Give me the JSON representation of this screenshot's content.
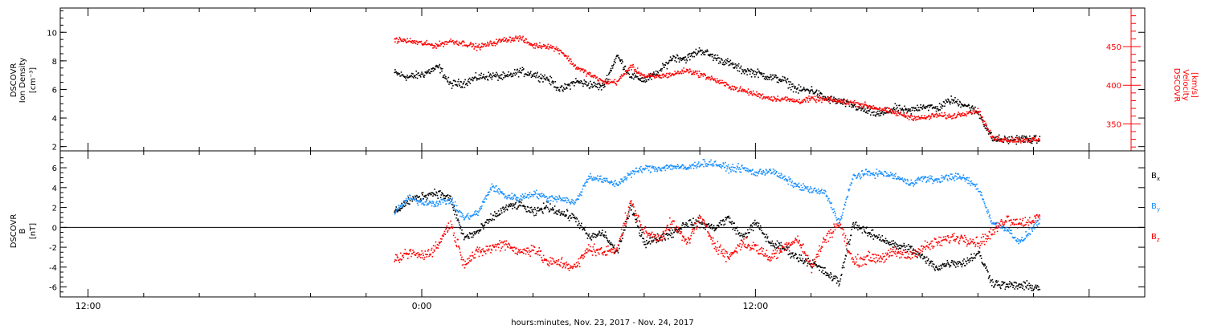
{
  "chart_data": [
    {
      "type": "scatter",
      "panel": "top",
      "ylabel_left": [
        "DSCOVR",
        "Ion Density",
        "[cm⁻³]"
      ],
      "ylabel_right": [
        "DSCOVR",
        "Velocity",
        "[km/s]"
      ],
      "y_left_range": [
        1.7,
        11.7
      ],
      "y_left_ticks": [
        2,
        4,
        6,
        8,
        10
      ],
      "y_right_range": [
        315,
        500
      ],
      "y_right_ticks": [
        350,
        400,
        450
      ],
      "series": [
        {
          "name": "Ion Density",
          "color": "#000000",
          "axis": "left",
          "points": [
            [
              -1.0,
              7.2
            ],
            [
              -0.5,
              6.9
            ],
            [
              0.0,
              7.1
            ],
            [
              0.6,
              7.6
            ],
            [
              1.0,
              6.4
            ],
            [
              1.5,
              6.5
            ],
            [
              2.0,
              6.9
            ],
            [
              2.5,
              7.0
            ],
            [
              3.0,
              6.9
            ],
            [
              3.5,
              7.3
            ],
            [
              4.0,
              7.1
            ],
            [
              4.5,
              6.8
            ],
            [
              5.0,
              6.0
            ],
            [
              5.5,
              6.6
            ],
            [
              6.0,
              6.4
            ],
            [
              6.5,
              6.2
            ],
            [
              7.0,
              8.4
            ],
            [
              7.5,
              7.0
            ],
            [
              8.0,
              6.7
            ],
            [
              8.5,
              7.2
            ],
            [
              9.0,
              8.3
            ],
            [
              9.5,
              8.2
            ],
            [
              10.0,
              8.8
            ],
            [
              10.5,
              8.3
            ],
            [
              11.0,
              7.9
            ],
            [
              11.5,
              7.4
            ],
            [
              12.0,
              7.2
            ],
            [
              12.5,
              6.9
            ],
            [
              13.0,
              6.7
            ],
            [
              13.5,
              6.0
            ],
            [
              14.0,
              6.0
            ],
            [
              14.5,
              5.4
            ],
            [
              15.0,
              5.2
            ],
            [
              15.5,
              4.9
            ],
            [
              16.0,
              4.5
            ],
            [
              16.5,
              4.3
            ],
            [
              17.0,
              4.7
            ],
            [
              17.5,
              4.5
            ],
            [
              18.0,
              4.9
            ],
            [
              18.5,
              4.7
            ],
            [
              19.0,
              5.3
            ],
            [
              19.5,
              5.0
            ],
            [
              20.0,
              4.4
            ],
            [
              20.5,
              2.6
            ],
            [
              21.0,
              2.5
            ],
            [
              21.5,
              2.6
            ],
            [
              22.2,
              2.5
            ]
          ]
        },
        {
          "name": "Velocity",
          "color": "#ff0000",
          "axis": "right",
          "points": [
            [
              -1.0,
              460
            ],
            [
              -0.5,
              458
            ],
            [
              0.0,
              455
            ],
            [
              0.5,
              452
            ],
            [
              1.0,
              458
            ],
            [
              1.5,
              455
            ],
            [
              2.0,
              450
            ],
            [
              2.5,
              455
            ],
            [
              3.0,
              460
            ],
            [
              3.5,
              462
            ],
            [
              4.0,
              452
            ],
            [
              4.5,
              452
            ],
            [
              5.0,
              445
            ],
            [
              5.5,
              425
            ],
            [
              6.0,
              415
            ],
            [
              6.5,
              405
            ],
            [
              7.0,
              405
            ],
            [
              7.5,
              425
            ],
            [
              8.0,
              412
            ],
            [
              8.5,
              412
            ],
            [
              9.0,
              415
            ],
            [
              9.5,
              420
            ],
            [
              10.0,
              415
            ],
            [
              10.5,
              408
            ],
            [
              11.0,
              400
            ],
            [
              11.5,
              394
            ],
            [
              12.0,
              389
            ],
            [
              12.5,
              384
            ],
            [
              13.0,
              383
            ],
            [
              13.5,
              380
            ],
            [
              14.0,
              383
            ],
            [
              14.5,
              382
            ],
            [
              15.0,
              380
            ],
            [
              15.5,
              378
            ],
            [
              16.0,
              374
            ],
            [
              16.5,
              370
            ],
            [
              17.0,
              365
            ],
            [
              17.5,
              360
            ],
            [
              18.0,
              358
            ],
            [
              18.5,
              362
            ],
            [
              19.0,
              360
            ],
            [
              19.5,
              365
            ],
            [
              20.0,
              368
            ],
            [
              20.5,
              332
            ],
            [
              21.0,
              330
            ],
            [
              21.5,
              330
            ],
            [
              22.2,
              330
            ]
          ]
        }
      ]
    },
    {
      "type": "scatter",
      "panel": "bottom",
      "ylabel_left": [
        "DSCOVR",
        "B",
        "[nT]"
      ],
      "y_left_range": [
        -7.0,
        7.7
      ],
      "y_left_ticks": [
        -6,
        -4,
        -2,
        0,
        2,
        4,
        6
      ],
      "zero_line": true,
      "series": [
        {
          "name": "Bx",
          "color": "#000000",
          "points": [
            [
              -1.0,
              1.6
            ],
            [
              -0.5,
              2.7
            ],
            [
              0.0,
              3.2
            ],
            [
              0.5,
              3.6
            ],
            [
              1.0,
              3.0
            ],
            [
              1.5,
              -1.0
            ],
            [
              2.0,
              -0.4
            ],
            [
              2.5,
              1.0
            ],
            [
              3.0,
              2.0
            ],
            [
              3.5,
              2.4
            ],
            [
              4.0,
              1.5
            ],
            [
              4.5,
              2.2
            ],
            [
              5.0,
              1.5
            ],
            [
              5.5,
              1.0
            ],
            [
              6.0,
              -1.0
            ],
            [
              6.5,
              -0.5
            ],
            [
              7.0,
              -2.5
            ],
            [
              7.5,
              2.0
            ],
            [
              8.0,
              -1.5
            ],
            [
              8.5,
              -1.0
            ],
            [
              9.0,
              -0.5
            ],
            [
              9.5,
              0.5
            ],
            [
              10.0,
              0.5
            ],
            [
              10.5,
              0.0
            ],
            [
              11.0,
              1.0
            ],
            [
              11.5,
              -1.0
            ],
            [
              12.0,
              0.5
            ],
            [
              12.5,
              -1.5
            ],
            [
              13.0,
              -2.0
            ],
            [
              13.5,
              -3.0
            ],
            [
              14.0,
              -3.5
            ],
            [
              14.5,
              -4.5
            ],
            [
              15.0,
              -5.5
            ],
            [
              15.5,
              0.5
            ],
            [
              16.0,
              -0.5
            ],
            [
              16.5,
              -1.0
            ],
            [
              17.0,
              -1.8
            ],
            [
              17.5,
              -2.0
            ],
            [
              18.0,
              -3.0
            ],
            [
              18.5,
              -4.0
            ],
            [
              19.0,
              -3.5
            ],
            [
              19.5,
              -3.5
            ],
            [
              20.0,
              -2.5
            ],
            [
              20.5,
              -5.5
            ],
            [
              21.0,
              -5.8
            ],
            [
              21.5,
              -5.8
            ],
            [
              22.2,
              -6.0
            ]
          ]
        },
        {
          "name": "By",
          "color": "#1a8fff",
          "points": [
            [
              -1.0,
              1.5
            ],
            [
              -0.5,
              3.0
            ],
            [
              0.0,
              2.6
            ],
            [
              0.5,
              2.5
            ],
            [
              1.0,
              2.8
            ],
            [
              1.5,
              1.0
            ],
            [
              2.0,
              1.5
            ],
            [
              2.5,
              4.2
            ],
            [
              3.0,
              3.2
            ],
            [
              3.5,
              3.0
            ],
            [
              4.0,
              3.5
            ],
            [
              4.5,
              3.0
            ],
            [
              5.0,
              3.0
            ],
            [
              5.5,
              2.5
            ],
            [
              6.0,
              5.2
            ],
            [
              6.5,
              4.8
            ],
            [
              7.0,
              4.4
            ],
            [
              7.5,
              5.5
            ],
            [
              8.0,
              6.0
            ],
            [
              8.5,
              6.0
            ],
            [
              9.0,
              6.2
            ],
            [
              9.5,
              6.0
            ],
            [
              10.0,
              6.5
            ],
            [
              10.5,
              6.5
            ],
            [
              11.0,
              6.0
            ],
            [
              11.5,
              6.0
            ],
            [
              12.0,
              5.5
            ],
            [
              12.5,
              5.8
            ],
            [
              13.0,
              5.0
            ],
            [
              13.5,
              4.2
            ],
            [
              14.0,
              3.8
            ],
            [
              14.5,
              3.5
            ],
            [
              15.0,
              0.5
            ],
            [
              15.5,
              5.2
            ],
            [
              16.0,
              5.5
            ],
            [
              16.5,
              5.5
            ],
            [
              17.0,
              5.2
            ],
            [
              17.5,
              4.5
            ],
            [
              18.0,
              5.0
            ],
            [
              18.5,
              4.8
            ],
            [
              19.0,
              5.2
            ],
            [
              19.5,
              5.0
            ],
            [
              20.0,
              4.0
            ],
            [
              20.5,
              0.5
            ],
            [
              21.0,
              0.0
            ],
            [
              21.5,
              -1.5
            ],
            [
              22.2,
              0.8
            ]
          ]
        },
        {
          "name": "Bz",
          "color": "#ff0000",
          "points": [
            [
              -1.0,
              -3.5
            ],
            [
              -0.5,
              -2.5
            ],
            [
              0.0,
              -2.8
            ],
            [
              0.5,
              -2.0
            ],
            [
              1.0,
              0.5
            ],
            [
              1.5,
              -3.5
            ],
            [
              2.0,
              -2.5
            ],
            [
              2.5,
              -2.0
            ],
            [
              3.0,
              -1.5
            ],
            [
              3.5,
              -2.5
            ],
            [
              4.0,
              -2.0
            ],
            [
              4.5,
              -3.5
            ],
            [
              5.0,
              -3.5
            ],
            [
              5.5,
              -4.0
            ],
            [
              6.0,
              -2.0
            ],
            [
              6.5,
              -2.5
            ],
            [
              7.0,
              -2.0
            ],
            [
              7.5,
              2.5
            ],
            [
              8.0,
              -0.5
            ],
            [
              8.5,
              -1.0
            ],
            [
              9.0,
              0.5
            ],
            [
              9.5,
              -1.5
            ],
            [
              10.0,
              1.0
            ],
            [
              10.5,
              -1.5
            ],
            [
              11.0,
              -3.0
            ],
            [
              11.5,
              -1.5
            ],
            [
              12.0,
              -2.0
            ],
            [
              12.5,
              -3.0
            ],
            [
              13.0,
              -2.0
            ],
            [
              13.5,
              -1.0
            ],
            [
              14.0,
              -4.0
            ],
            [
              14.5,
              -1.0
            ],
            [
              15.0,
              0.5
            ],
            [
              15.5,
              -3.5
            ],
            [
              16.0,
              -3.0
            ],
            [
              16.5,
              -3.0
            ],
            [
              17.0,
              -2.5
            ],
            [
              17.5,
              -2.8
            ],
            [
              18.0,
              -2.0
            ],
            [
              18.5,
              -1.5
            ],
            [
              19.0,
              -1.0
            ],
            [
              19.5,
              -1.0
            ],
            [
              20.0,
              -1.5
            ],
            [
              20.5,
              -0.5
            ],
            [
              21.0,
              1.0
            ],
            [
              21.5,
              0.5
            ],
            [
              22.2,
              1.0
            ]
          ]
        }
      ]
    }
  ],
  "x_axis": {
    "unit": "hours relative to Nov. 24, 2017 00:00",
    "range": [
      -13.0,
      26.0
    ],
    "tick_labels": [
      {
        "x": -12,
        "label": "12:00"
      },
      {
        "x": 0,
        "label": "0:00"
      },
      {
        "x": 12,
        "label": "12:00"
      }
    ],
    "minor_tick_step_hours": 2,
    "title": "hours:minutes, Nov. 23, 2017 - Nov. 24, 2017"
  },
  "legend": {
    "bx": {
      "base": "B",
      "sub": "x",
      "color": "#000000"
    },
    "by": {
      "base": "B",
      "sub": "y",
      "color": "#1a8fff"
    },
    "bz": {
      "base": "B",
      "sub": "z",
      "color": "#ff0000"
    }
  }
}
